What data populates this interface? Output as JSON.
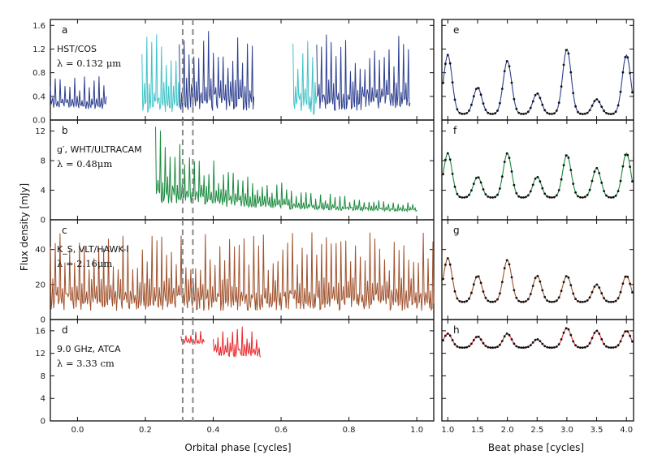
{
  "chart_data": {
    "type": "line",
    "xlabel_left": "Orbital phase [cycles]",
    "xlabel_right": "Beat phase [cycles]",
    "ylabel": "Flux density [mJy]",
    "left_x_range": [
      -0.08,
      1.05
    ],
    "left_x_ticks": [
      "0.0",
      "0.2",
      "0.4",
      "0.6",
      "0.8",
      "1.0"
    ],
    "right_x_range": [
      0.9,
      4.12
    ],
    "right_x_ticks": [
      "1.0",
      "1.5",
      "2.0",
      "2.5",
      "3.0",
      "3.5",
      "4.0"
    ],
    "dashed_phases": [
      0.31,
      0.34
    ],
    "panels": [
      {
        "left_letter": "a",
        "right_letter": "e",
        "instrument": "HST/COS",
        "wavelength": "λ = 0.132 μm",
        "ylim": [
          0,
          1.7
        ],
        "yticks": [
          "0.0",
          "0.4",
          "0.8",
          "1.2",
          "1.6"
        ],
        "colors": [
          "#2e3f8f",
          "#3ec3c8"
        ],
        "segments": [
          {
            "x": [
              -0.08,
              0.085
            ],
            "base": 0.25,
            "peak": 0.75,
            "color": 0
          },
          {
            "x": [
              0.19,
              0.3
            ],
            "base": 0.25,
            "peak": 1.45,
            "color": 1
          },
          {
            "x": [
              0.3,
              0.52
            ],
            "base": 0.3,
            "peak": 1.55,
            "color": 0
          },
          {
            "x": [
              0.635,
              0.705
            ],
            "base": 0.25,
            "peak": 1.55,
            "color": 1
          },
          {
            "x": [
              0.705,
              0.98
            ],
            "base": 0.3,
            "peak": 1.45,
            "color": 0
          }
        ],
        "beat_profile": {
          "min": 0.1,
          "peaks": [
            1.1,
            0.55,
            1.0,
            0.45,
            1.2,
            0.35,
            1.1
          ]
        }
      },
      {
        "left_letter": "b",
        "right_letter": "f",
        "instrument": "g′, WHT/ULTRACAM",
        "wavelength": "λ = 0.48μm",
        "ylim": [
          0,
          13.5
        ],
        "yticks": [
          "0",
          "4",
          "8",
          "12"
        ],
        "colors": [
          "#1a8a3e"
        ],
        "segments": [
          {
            "x": [
              0.23,
              1.0
            ],
            "base": 3.5,
            "peak": 12.8,
            "color": 0,
            "decay_to": 1.0
          }
        ],
        "beat_profile": {
          "min": 3.0,
          "peaks": [
            9.0,
            5.8,
            9.0,
            5.8,
            8.8,
            7.0,
            9.0
          ]
        }
      },
      {
        "left_letter": "c",
        "right_letter": "g",
        "instrument": "K_S, VLT/HAWK-I",
        "wavelength": "λ = 2.16μm",
        "ylim": [
          0,
          57
        ],
        "yticks": [
          "0",
          "20",
          "40"
        ],
        "colors": [
          "#a0522d"
        ],
        "segments": [
          {
            "x": [
              -0.08,
              1.05
            ],
            "base": 10,
            "peak": 50,
            "color": 0
          }
        ],
        "beat_profile": {
          "min": 10.0,
          "peaks": [
            35.0,
            25.0,
            34.0,
            25.0,
            25.0,
            20.0,
            25.0
          ]
        }
      },
      {
        "left_letter": "d",
        "right_letter": "h",
        "instrument": "9.0 GHz, ATCA",
        "wavelength": "λ = 3.33 cm",
        "ylim": [
          0,
          18
        ],
        "yticks": [
          "0",
          "4",
          "8",
          "12",
          "16"
        ],
        "colors": [
          "#e8262a"
        ],
        "segments": [
          {
            "x": [
              0.305,
              0.375
            ],
            "base": 14,
            "peak": 16,
            "color": 0
          },
          {
            "x": [
              0.4,
              0.54
            ],
            "base": 12,
            "peak": 17.5,
            "color": 0
          }
        ],
        "beat_profile": {
          "min": 13.0,
          "peaks": [
            15.5,
            15.0,
            15.5,
            14.5,
            16.5,
            16.0,
            16.0
          ]
        }
      }
    ]
  }
}
